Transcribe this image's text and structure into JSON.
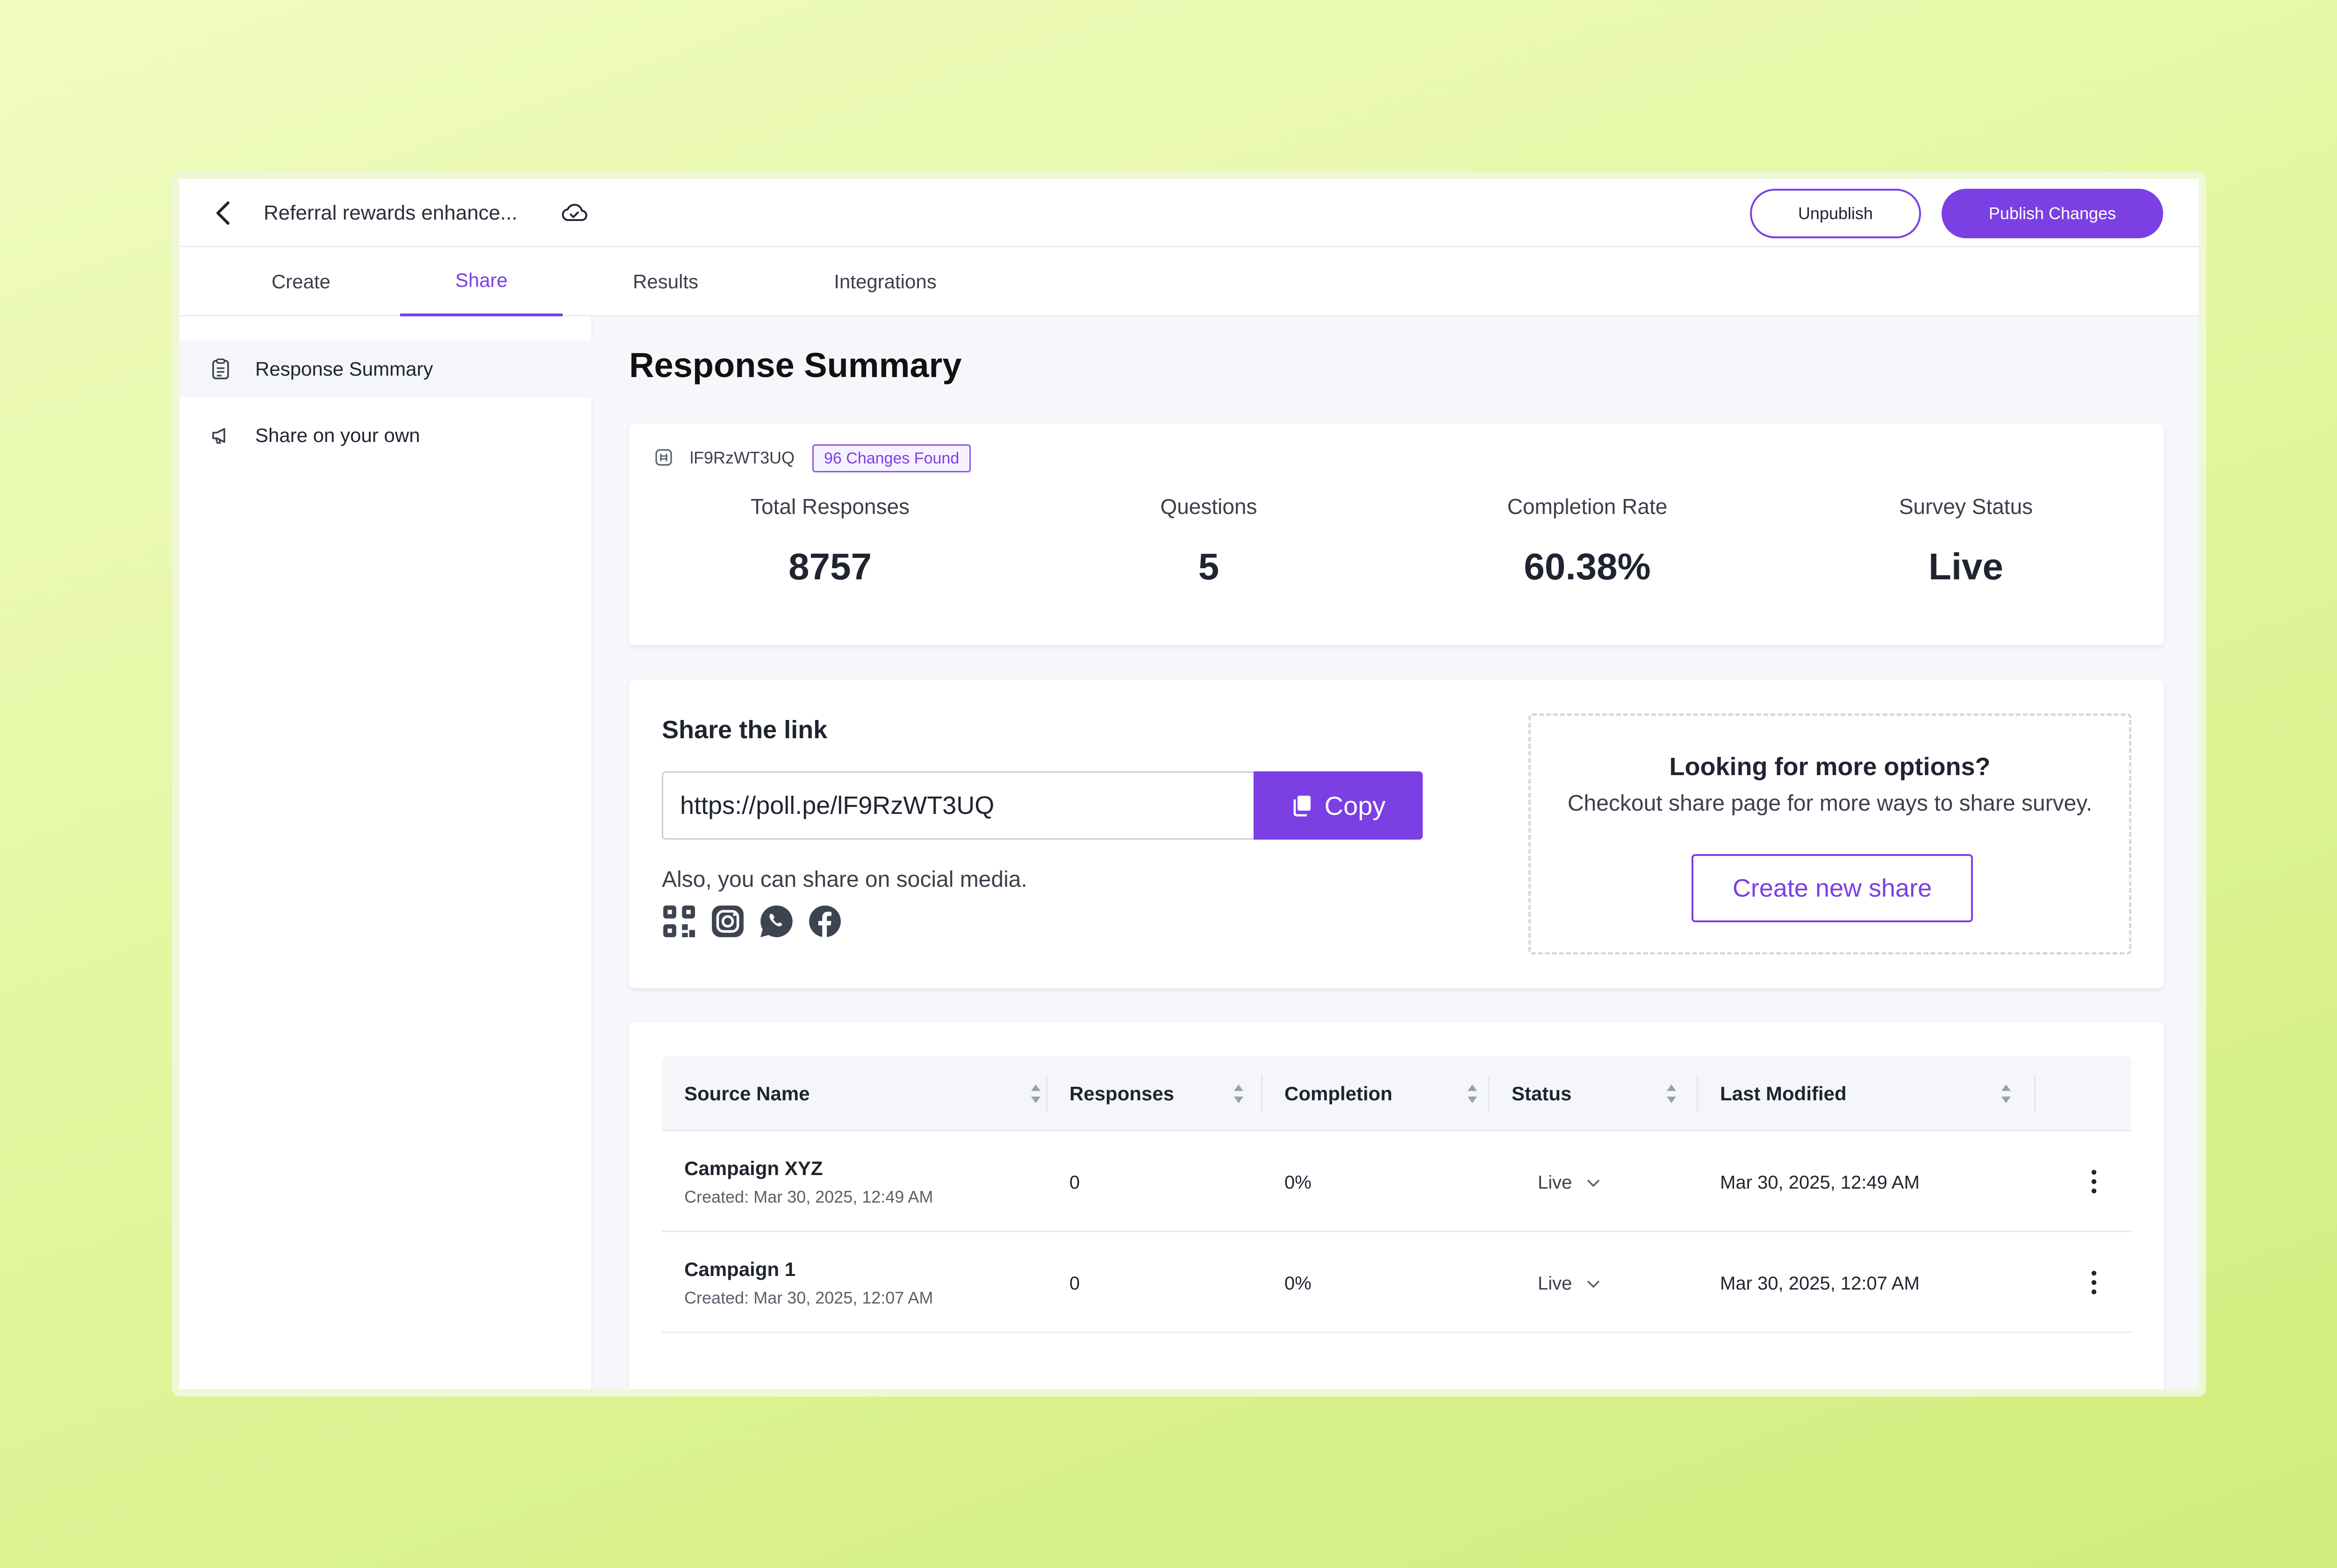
{
  "header": {
    "survey_title": "Referral rewards enhance...",
    "unpublish_label": "Unpublish",
    "publish_label": "Publish Changes"
  },
  "tabs": [
    {
      "label": "Create"
    },
    {
      "label": "Share"
    },
    {
      "label": "Results"
    },
    {
      "label": "Integrations"
    }
  ],
  "active_tab": "Share",
  "sidebar": {
    "items": [
      {
        "label": "Response Summary",
        "icon": "clipboard-icon"
      },
      {
        "label": "Share on your own",
        "icon": "megaphone-icon"
      }
    ]
  },
  "main": {
    "title": "Response Summary",
    "summary": {
      "survey_id": "lF9RzWT3UQ",
      "changes_badge": "96 Changes Found",
      "stats": [
        {
          "label": "Total Responses",
          "value": "8757"
        },
        {
          "label": "Questions",
          "value": "5"
        },
        {
          "label": "Completion Rate",
          "value": "60.38%"
        },
        {
          "label": "Survey Status",
          "value": "Live"
        }
      ]
    },
    "share": {
      "heading": "Share the link",
      "link": "https://poll.pe/lF9RzWT3UQ",
      "copy_label": "Copy",
      "social_text": "Also, you can share on social media.",
      "social_icons": [
        "qr-code-icon",
        "instagram-icon",
        "whatsapp-icon",
        "facebook-icon"
      ],
      "more_title": "Looking for more options?",
      "more_sub": "Checkout share page for more ways to share survey.",
      "create_share_label": "Create new share"
    },
    "table": {
      "columns": [
        "Source Name",
        "Responses",
        "Completion",
        "Status",
        "Last Modified"
      ],
      "rows": [
        {
          "name": "Campaign XYZ",
          "created": "Created: Mar 30, 2025, 12:49 AM",
          "responses": "0",
          "completion": "0%",
          "status": "Live",
          "modified": "Mar 30, 2025, 12:49 AM"
        },
        {
          "name": "Campaign 1",
          "created": "Created: Mar 30, 2025, 12:07 AM",
          "responses": "0",
          "completion": "0%",
          "status": "Live",
          "modified": "Mar 30, 2025, 12:07 AM"
        }
      ]
    }
  },
  "colors": {
    "accent": "#7b3fe4",
    "text": "#1f2430",
    "panel": "#f6f7fb"
  }
}
